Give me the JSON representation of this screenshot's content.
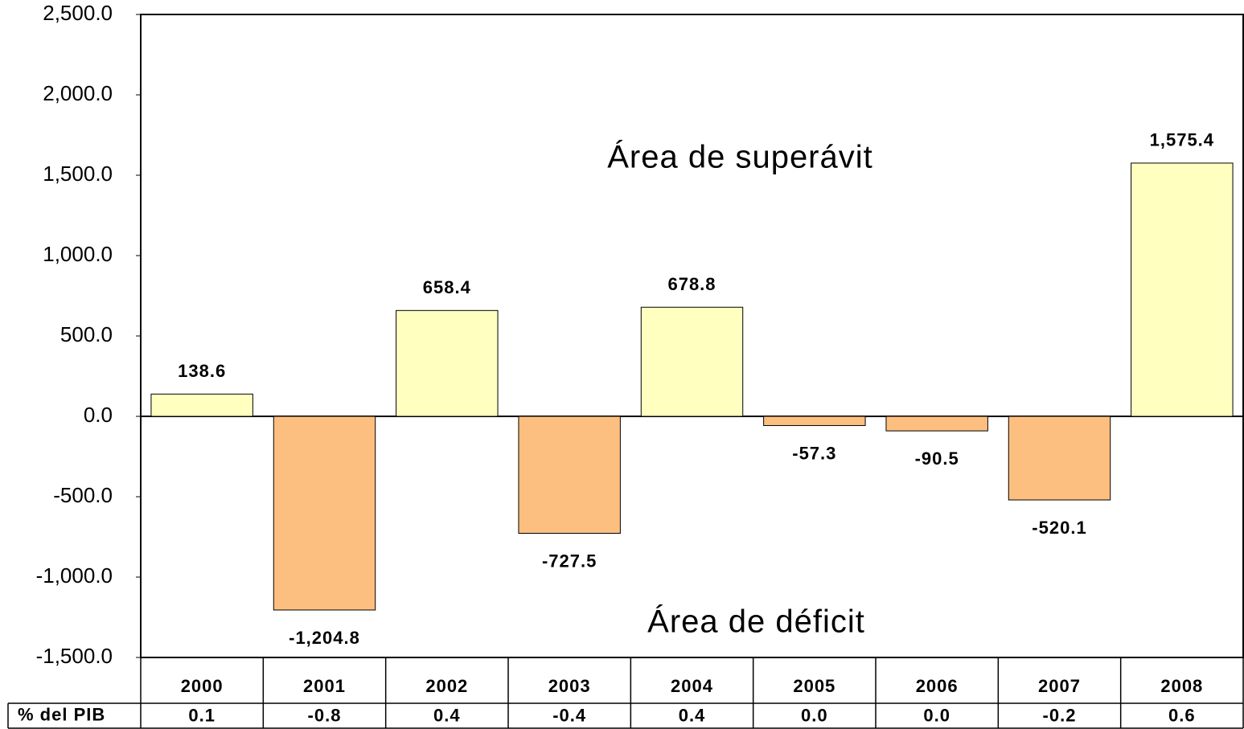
{
  "chart_data": {
    "type": "bar",
    "annotations": [
      "Área de superávit",
      "Área de déficit"
    ],
    "categories": [
      "2000",
      "2001",
      "2002",
      "2003",
      "2004",
      "2005",
      "2006",
      "2007",
      "2008"
    ],
    "values": [
      138.6,
      -1204.8,
      658.4,
      -727.5,
      678.8,
      -57.3,
      -90.5,
      -520.1,
      1575.4
    ],
    "value_labels": [
      "138.6",
      "-1,204.8",
      "658.4",
      "-727.5",
      "678.8",
      "-57.3",
      "-90.5",
      "-520.1",
      "1,575.4"
    ],
    "color": "#ffffc0",
    "negative_color": "#fdbf80",
    "ylim": [
      -1500,
      2500
    ],
    "yticks": [
      {
        "value": -1500,
        "label": "-1,500.0"
      },
      {
        "value": -1000,
        "label": "-1,000.0"
      },
      {
        "value": -500,
        "label": "-500.0"
      },
      {
        "value": 0,
        "label": "0.0"
      },
      {
        "value": 500,
        "label": "500.0"
      },
      {
        "value": 1000,
        "label": "1,000.0"
      },
      {
        "value": 1500,
        "label": "1,500.0"
      },
      {
        "value": 2000,
        "label": "2,000.0"
      },
      {
        "value": 2500,
        "label": "2,500.0"
      }
    ],
    "table_row": {
      "label": "% del PIB",
      "values": [
        "0.1",
        "-0.8",
        "0.4",
        "-0.4",
        "0.4",
        "0.0",
        "0.0",
        "-0.2",
        "0.6"
      ]
    }
  }
}
